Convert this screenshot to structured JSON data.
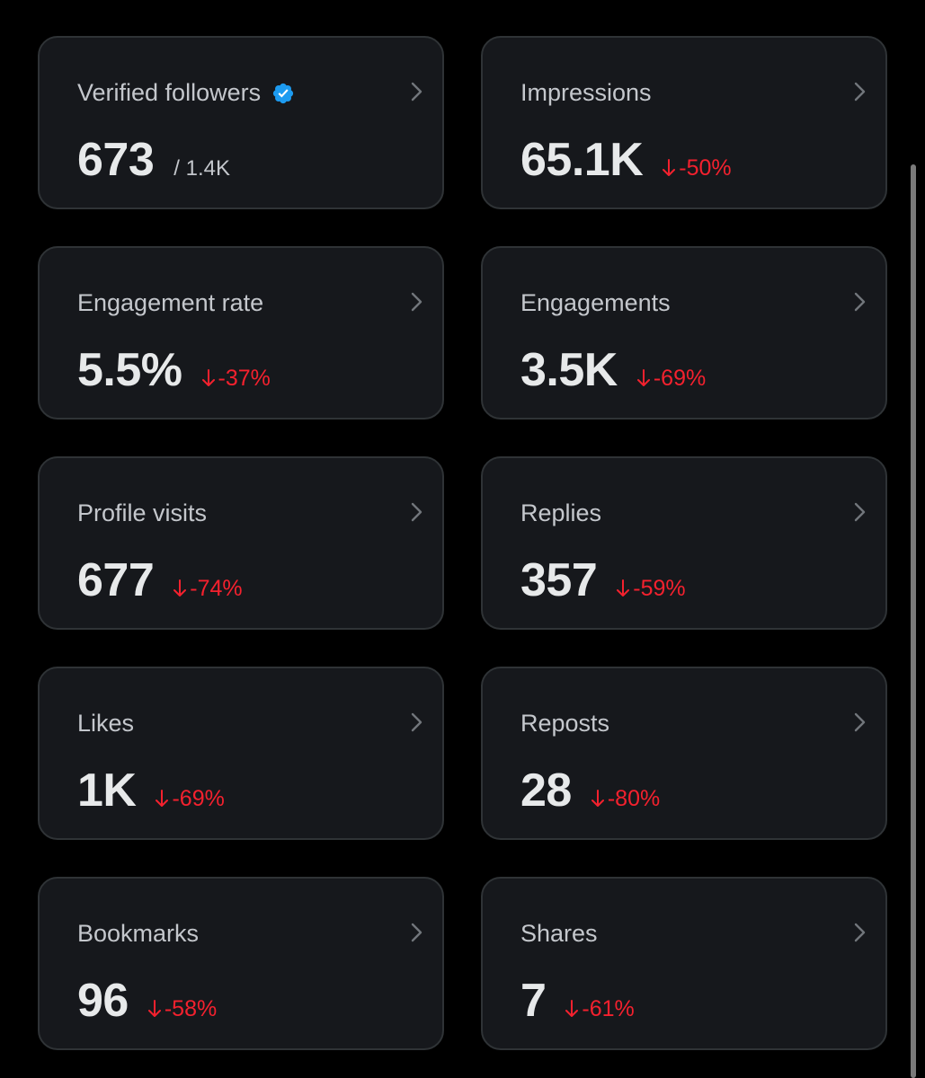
{
  "colors": {
    "background": "#000000",
    "card_background": "#16181c",
    "card_border": "#2f3336",
    "title_text": "#c4c7cc",
    "value_text": "#e7e9ea",
    "negative_delta": "#f4212e",
    "verified_badge": "#1d9bf0"
  },
  "icons": {
    "chevron": "chevron-right-icon",
    "delta": "arrow-down-icon",
    "verified": "verified-badge-icon"
  },
  "metrics": [
    {
      "title": "Verified followers",
      "value": "673",
      "secondary": "/ 1.4K",
      "delta": "",
      "verified": true
    },
    {
      "title": "Impressions",
      "value": "65.1K",
      "secondary": "",
      "delta": "-50%"
    },
    {
      "title": "Engagement rate",
      "value": "5.5%",
      "secondary": "",
      "delta": "-37%"
    },
    {
      "title": "Engagements",
      "value": "3.5K",
      "secondary": "",
      "delta": "-69%"
    },
    {
      "title": "Profile visits",
      "value": "677",
      "secondary": "",
      "delta": "-74%"
    },
    {
      "title": "Replies",
      "value": "357",
      "secondary": "",
      "delta": "-59%"
    },
    {
      "title": "Likes",
      "value": "1K",
      "secondary": "",
      "delta": "-69%"
    },
    {
      "title": "Reposts",
      "value": "28",
      "secondary": "",
      "delta": "-80%"
    },
    {
      "title": "Bookmarks",
      "value": "96",
      "secondary": "",
      "delta": "-58%"
    },
    {
      "title": "Shares",
      "value": "7",
      "secondary": "",
      "delta": "-61%"
    }
  ]
}
